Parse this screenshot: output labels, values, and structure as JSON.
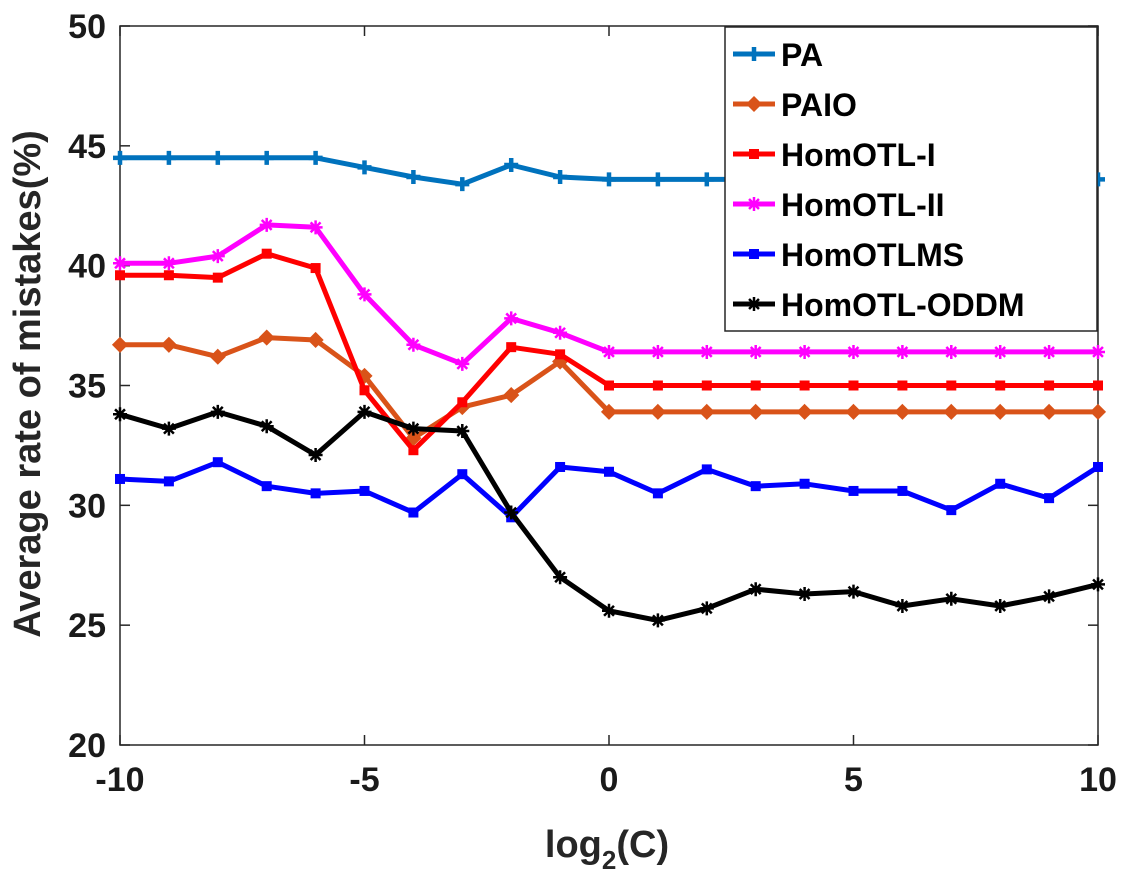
{
  "chart_data": {
    "type": "line",
    "xlabel": "log",
    "xlabel_sub": "2",
    "xlabel_tail": "(C)",
    "ylabel": "Average rate of mistakes(%)",
    "xlim": [
      -10,
      10
    ],
    "ylim": [
      20,
      50
    ],
    "xticks": [
      -10,
      -5,
      0,
      5,
      10
    ],
    "yticks": [
      20,
      25,
      30,
      35,
      40,
      45,
      50
    ],
    "grid": false,
    "legend_position": "top-right",
    "x": [
      -10,
      -9,
      -8,
      -7,
      -6,
      -5,
      -4,
      -3,
      -2,
      -1,
      0,
      1,
      2,
      3,
      4,
      5,
      6,
      7,
      8,
      9,
      10
    ],
    "series": [
      {
        "name": "PA",
        "color": "#0072BD",
        "marker": "plus",
        "values": [
          44.5,
          44.5,
          44.5,
          44.5,
          44.5,
          44.1,
          43.7,
          43.4,
          44.2,
          43.7,
          43.6,
          43.6,
          43.6,
          43.6,
          43.6,
          43.6,
          43.6,
          43.6,
          43.6,
          43.6,
          43.6
        ]
      },
      {
        "name": "PAIO",
        "color": "#D95319",
        "marker": "diamond",
        "values": [
          36.7,
          36.7,
          36.2,
          37.0,
          36.9,
          35.4,
          32.8,
          34.1,
          34.6,
          36.0,
          33.9,
          33.9,
          33.9,
          33.9,
          33.9,
          33.9,
          33.9,
          33.9,
          33.9,
          33.9,
          33.9
        ]
      },
      {
        "name": "HomOTL-I",
        "color": "#FF0000",
        "marker": "square",
        "values": [
          39.6,
          39.6,
          39.5,
          40.5,
          39.9,
          34.8,
          32.3,
          34.3,
          36.6,
          36.3,
          35.0,
          35.0,
          35.0,
          35.0,
          35.0,
          35.0,
          35.0,
          35.0,
          35.0,
          35.0,
          35.0
        ]
      },
      {
        "name": "HomOTL-II",
        "color": "#FF00FF",
        "marker": "asterisk",
        "values": [
          40.1,
          40.1,
          40.4,
          41.7,
          41.6,
          38.8,
          36.7,
          35.9,
          37.8,
          37.2,
          36.4,
          36.4,
          36.4,
          36.4,
          36.4,
          36.4,
          36.4,
          36.4,
          36.4,
          36.4,
          36.4
        ]
      },
      {
        "name": "HomOTLMS",
        "color": "#0000FF",
        "marker": "square",
        "values": [
          31.1,
          31.0,
          31.8,
          30.8,
          30.5,
          30.6,
          29.7,
          31.3,
          29.5,
          31.6,
          31.4,
          30.5,
          31.5,
          30.8,
          30.9,
          30.6,
          30.6,
          29.8,
          30.9,
          30.3,
          31.6
        ]
      },
      {
        "name": "HomOTL-ODDM",
        "color": "#000000",
        "marker": "asterisk",
        "values": [
          33.8,
          33.2,
          33.9,
          33.3,
          32.1,
          33.9,
          33.2,
          33.1,
          29.7,
          27.0,
          25.6,
          25.2,
          25.7,
          26.5,
          26.3,
          26.4,
          25.8,
          26.1,
          25.8,
          26.2,
          26.7
        ]
      }
    ]
  }
}
